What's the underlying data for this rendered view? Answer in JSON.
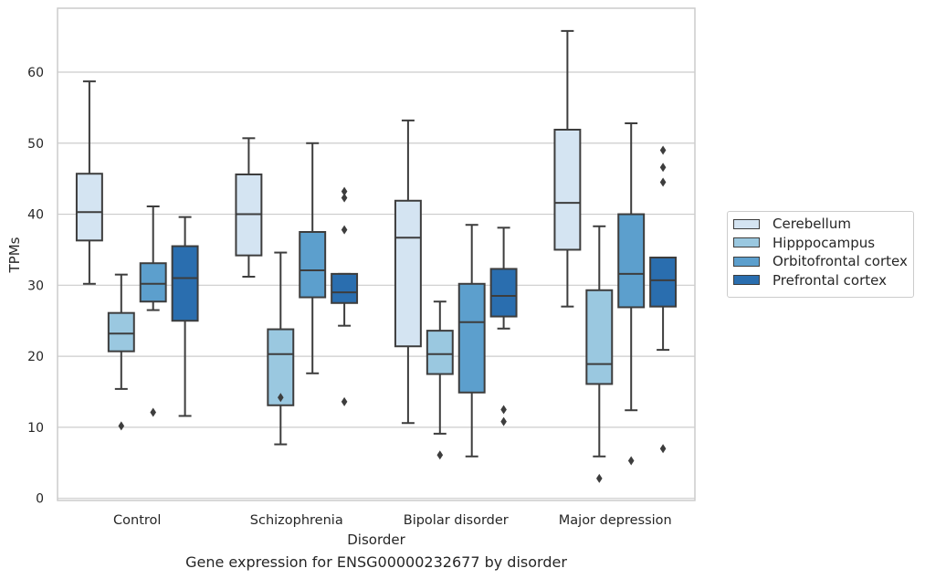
{
  "chart_data": {
    "type": "box",
    "title": "Gene expression for ENSG00000232677 by disorder",
    "xlabel": "Disorder",
    "ylabel": "TPMs",
    "ylim": [
      -0.3,
      69
    ],
    "yticks": [
      0,
      10,
      20,
      30,
      40,
      50,
      60
    ],
    "grid": "horizontal",
    "legend_position": "right",
    "categories": [
      "Control",
      "Schizophrenia",
      "Bipolar disorder",
      "Major depression"
    ],
    "series": [
      {
        "name": "Cerebellum",
        "color": "#d4e4f2",
        "boxes": [
          {
            "whislo": 30.2,
            "q1": 36.3,
            "med": 40.3,
            "q3": 45.7,
            "whishi": 58.7,
            "fliers": []
          },
          {
            "whislo": 31.2,
            "q1": 34.2,
            "med": 40.0,
            "q3": 45.6,
            "whishi": 50.7,
            "fliers": []
          },
          {
            "whislo": 10.6,
            "q1": 21.4,
            "med": 36.7,
            "q3": 41.9,
            "whishi": 53.2,
            "fliers": []
          },
          {
            "whislo": 27.0,
            "q1": 35.0,
            "med": 41.6,
            "q3": 51.9,
            "whishi": 65.8,
            "fliers": []
          }
        ]
      },
      {
        "name": "Hipppocampus",
        "color": "#9ac8e0",
        "boxes": [
          {
            "whislo": 15.4,
            "q1": 20.7,
            "med": 23.2,
            "q3": 26.1,
            "whishi": 31.5,
            "fliers": [
              10.2
            ]
          },
          {
            "whislo": 7.6,
            "q1": 13.1,
            "med": 20.3,
            "q3": 23.8,
            "whishi": 34.6,
            "fliers": [
              14.2
            ]
          },
          {
            "whislo": 9.1,
            "q1": 17.5,
            "med": 20.3,
            "q3": 23.6,
            "whishi": 27.7,
            "fliers": [
              6.1
            ]
          },
          {
            "whislo": 5.9,
            "q1": 16.1,
            "med": 18.9,
            "q3": 29.3,
            "whishi": 38.3,
            "fliers": [
              2.8
            ]
          }
        ]
      },
      {
        "name": "Orbitofrontal cortex",
        "color": "#5c9fcd",
        "boxes": [
          {
            "whislo": 26.5,
            "q1": 27.7,
            "med": 30.2,
            "q3": 33.1,
            "whishi": 41.1,
            "fliers": [
              12.1
            ]
          },
          {
            "whislo": 17.6,
            "q1": 28.3,
            "med": 32.1,
            "q3": 37.5,
            "whishi": 50.0,
            "fliers": []
          },
          {
            "whislo": 5.9,
            "q1": 14.9,
            "med": 24.8,
            "q3": 30.2,
            "whishi": 38.5,
            "fliers": []
          },
          {
            "whislo": 12.4,
            "q1": 26.9,
            "med": 31.6,
            "q3": 40.0,
            "whishi": 52.8,
            "fliers": [
              5.3
            ]
          }
        ]
      },
      {
        "name": "Prefrontal cortex",
        "color": "#2a6eaf",
        "boxes": [
          {
            "whislo": 11.6,
            "q1": 25.0,
            "med": 31.0,
            "q3": 35.5,
            "whishi": 39.6,
            "fliers": []
          },
          {
            "whislo": 24.3,
            "q1": 27.5,
            "med": 29.0,
            "q3": 31.6,
            "whishi": 31.6,
            "fliers": [
              43.2,
              42.3,
              37.8,
              13.6
            ]
          },
          {
            "whislo": 23.9,
            "q1": 25.6,
            "med": 28.5,
            "q3": 32.3,
            "whishi": 38.1,
            "fliers": [
              12.5,
              10.8
            ]
          },
          {
            "whislo": 20.9,
            "q1": 27.0,
            "med": 30.7,
            "q3": 33.9,
            "whishi": 33.9,
            "fliers": [
              49.0,
              46.6,
              44.5,
              7.0
            ]
          }
        ]
      }
    ]
  }
}
